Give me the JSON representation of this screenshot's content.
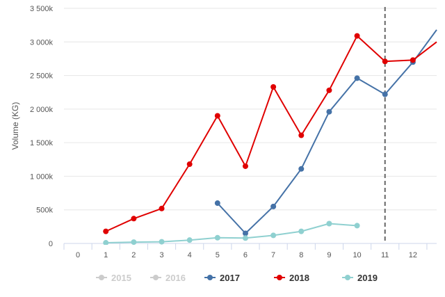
{
  "chart_data": {
    "type": "line",
    "ylabel": "Volume (KG)",
    "xlabel": "",
    "x_ticks": [
      "0",
      "1",
      "2",
      "3",
      "4",
      "5",
      "6",
      "7",
      "8",
      "9",
      "10",
      "11",
      "12"
    ],
    "y_ticks": [
      "0",
      "500k",
      "1 000k",
      "1 500k",
      "2 000k",
      "2 500k",
      "3 000k",
      "3 500k"
    ],
    "xlim": [
      -0.5,
      12.85
    ],
    "ylim": [
      0,
      3500000
    ],
    "grid": "horizontal",
    "reference_line": {
      "x": 11,
      "style": "dashed",
      "color": "#666666"
    },
    "legend_position": "bottom-center",
    "series": [
      {
        "name": "2015",
        "color": "#cccccc",
        "hidden": true,
        "x": [],
        "values": []
      },
      {
        "name": "2016",
        "color": "#cccccc",
        "hidden": true,
        "x": [],
        "values": []
      },
      {
        "name": "2017",
        "color": "#4572a7",
        "hidden": false,
        "x": [
          5,
          6,
          7,
          8,
          9,
          10,
          11,
          12,
          12.85
        ],
        "values": [
          600000,
          150000,
          550000,
          1110000,
          1960000,
          2460000,
          2220000,
          2700000,
          3180000
        ]
      },
      {
        "name": "2018",
        "color": "#e00000",
        "hidden": false,
        "x": [
          1,
          2,
          3,
          4,
          5,
          6,
          7,
          8,
          9,
          10,
          11,
          12,
          12.85
        ],
        "values": [
          180000,
          370000,
          520000,
          1180000,
          1900000,
          1150000,
          2330000,
          1610000,
          2280000,
          3090000,
          2710000,
          2730000,
          3000000
        ]
      },
      {
        "name": "2019",
        "color": "#8fd0d0",
        "hidden": false,
        "x": [
          1,
          2,
          3,
          4,
          5,
          6,
          7,
          8,
          9,
          10
        ],
        "values": [
          10000,
          20000,
          25000,
          50000,
          85000,
          80000,
          120000,
          180000,
          295000,
          265000
        ]
      }
    ]
  }
}
